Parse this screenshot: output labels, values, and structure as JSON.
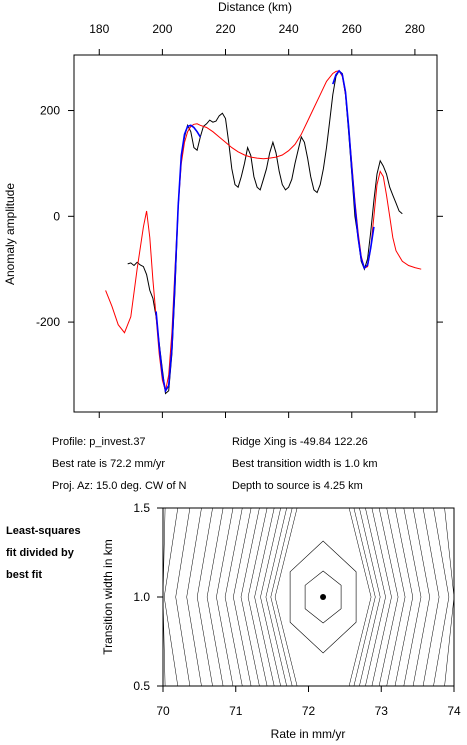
{
  "top_chart": {
    "xlabel": "Distance (km)",
    "ylabel": "Anomaly amplitude",
    "xticks": [
      180,
      200,
      220,
      240,
      260,
      280
    ],
    "yticks": [
      200,
      0,
      -200
    ]
  },
  "info": {
    "profile": "Profile: p_invest.37",
    "best_rate": "Best rate is 72.2 mm/yr",
    "proj_az": "Proj. Az: 15.0 deg. CW of N",
    "ridge_xing": "Ridge Xing is -49.84 122.26",
    "transition": "Best transition width is 1.0 km",
    "depth": "Depth to source is   4.25 km"
  },
  "note": {
    "line1": "Least-squares",
    "line2": "fit divided by",
    "line3": "best fit"
  },
  "bottom_chart": {
    "xlabel": "Rate in mm/yr",
    "ylabel": "Transition width in km",
    "xticks": [
      "70",
      "71",
      "72",
      "73",
      "74"
    ],
    "yticks": [
      "1.5",
      "1.0",
      "0.5"
    ]
  },
  "chart_data": [
    {
      "type": "line",
      "xlabel": "Distance (km)",
      "ylabel": "Anomaly amplitude",
      "xlim": [
        172,
        287
      ],
      "ylim": [
        -370,
        305
      ],
      "grid": false,
      "series": [
        {
          "color": "#000000",
          "x": [
            189,
            190,
            191,
            192,
            193,
            194,
            195,
            196,
            197,
            198,
            199,
            200,
            201,
            202,
            203,
            204,
            205,
            206,
            207,
            208,
            209,
            210,
            211,
            212,
            213,
            214,
            215,
            216,
            217,
            218,
            219,
            220,
            221,
            222,
            223,
            224,
            225,
            226,
            227,
            228,
            229,
            230,
            231,
            232,
            233,
            234,
            235,
            236,
            237,
            238,
            239,
            240,
            241,
            242,
            243,
            244,
            245,
            246,
            247,
            248,
            249,
            250,
            251,
            252,
            253,
            254,
            255,
            256,
            257,
            258,
            259,
            260,
            261,
            262,
            263,
            264,
            265,
            266,
            267,
            268,
            269,
            270,
            271,
            272,
            273,
            274,
            275,
            276
          ],
          "y": [
            -90,
            -88,
            -93,
            -87,
            -92,
            -95,
            -110,
            -140,
            -155,
            -190,
            -240,
            -290,
            -335,
            -330,
            -260,
            -140,
            20,
            110,
            150,
            172,
            160,
            130,
            125,
            150,
            170,
            175,
            182,
            178,
            180,
            190,
            195,
            185,
            140,
            90,
            60,
            55,
            75,
            100,
            130,
            115,
            75,
            55,
            50,
            70,
            90,
            120,
            140,
            120,
            85,
            60,
            50,
            55,
            70,
            100,
            125,
            150,
            140,
            110,
            75,
            50,
            45,
            60,
            90,
            130,
            180,
            230,
            265,
            275,
            270,
            230,
            160,
            80,
            0,
            -40,
            -85,
            -100,
            -80,
            -30,
            30,
            80,
            105,
            95,
            80,
            55,
            40,
            25,
            10,
            5
          ]
        },
        {
          "color": "#ff0000",
          "x": [
            182,
            184,
            186,
            188,
            190,
            192,
            194,
            195,
            196,
            197,
            198,
            199,
            200,
            201,
            202,
            203,
            204,
            205,
            206,
            207,
            208,
            209,
            210,
            211,
            212,
            214,
            216,
            218,
            220,
            222,
            224,
            226,
            228,
            230,
            232,
            234,
            236,
            238,
            240,
            242,
            244,
            246,
            248,
            250,
            252,
            254,
            255,
            256,
            257,
            258,
            259,
            260,
            261,
            262,
            263,
            264,
            265,
            266,
            267,
            268,
            269,
            270,
            271,
            272,
            273,
            274,
            276,
            278,
            280,
            282
          ],
          "y": [
            -140,
            -170,
            -205,
            -220,
            -190,
            -100,
            -20,
            10,
            -40,
            -120,
            -190,
            -260,
            -310,
            -330,
            -300,
            -220,
            -100,
            20,
            100,
            140,
            160,
            170,
            174,
            175,
            172,
            168,
            160,
            150,
            140,
            130,
            122,
            116,
            112,
            110,
            109,
            110,
            112,
            116,
            124,
            136,
            155,
            180,
            205,
            230,
            255,
            270,
            274,
            275,
            265,
            230,
            170,
            100,
            30,
            -30,
            -75,
            -98,
            -95,
            -60,
            0,
            60,
            85,
            75,
            40,
            0,
            -40,
            -65,
            -85,
            -93,
            -97,
            -100
          ]
        },
        {
          "color": "#0000ff",
          "x": [
            198,
            199,
            200,
            201,
            202,
            203,
            204,
            205,
            206,
            207,
            208,
            209,
            210,
            211,
            212,
            254,
            255,
            256,
            257,
            258,
            259,
            260,
            261,
            262,
            263,
            264,
            265,
            266,
            267
          ],
          "y": [
            -180,
            -245,
            -300,
            -330,
            -320,
            -250,
            -120,
            20,
            115,
            155,
            170,
            172,
            168,
            160,
            150,
            250,
            268,
            275,
            268,
            235,
            170,
            90,
            20,
            -40,
            -80,
            -98,
            -92,
            -60,
            -20
          ]
        }
      ]
    },
    {
      "type": "contour",
      "xlabel": "Rate in mm/yr",
      "ylabel": "Transition width in km",
      "xlim": [
        70,
        74
      ],
      "ylim": [
        0.5,
        1.5
      ],
      "minimum": {
        "x": 72.2,
        "y": 1.0
      }
    }
  ]
}
